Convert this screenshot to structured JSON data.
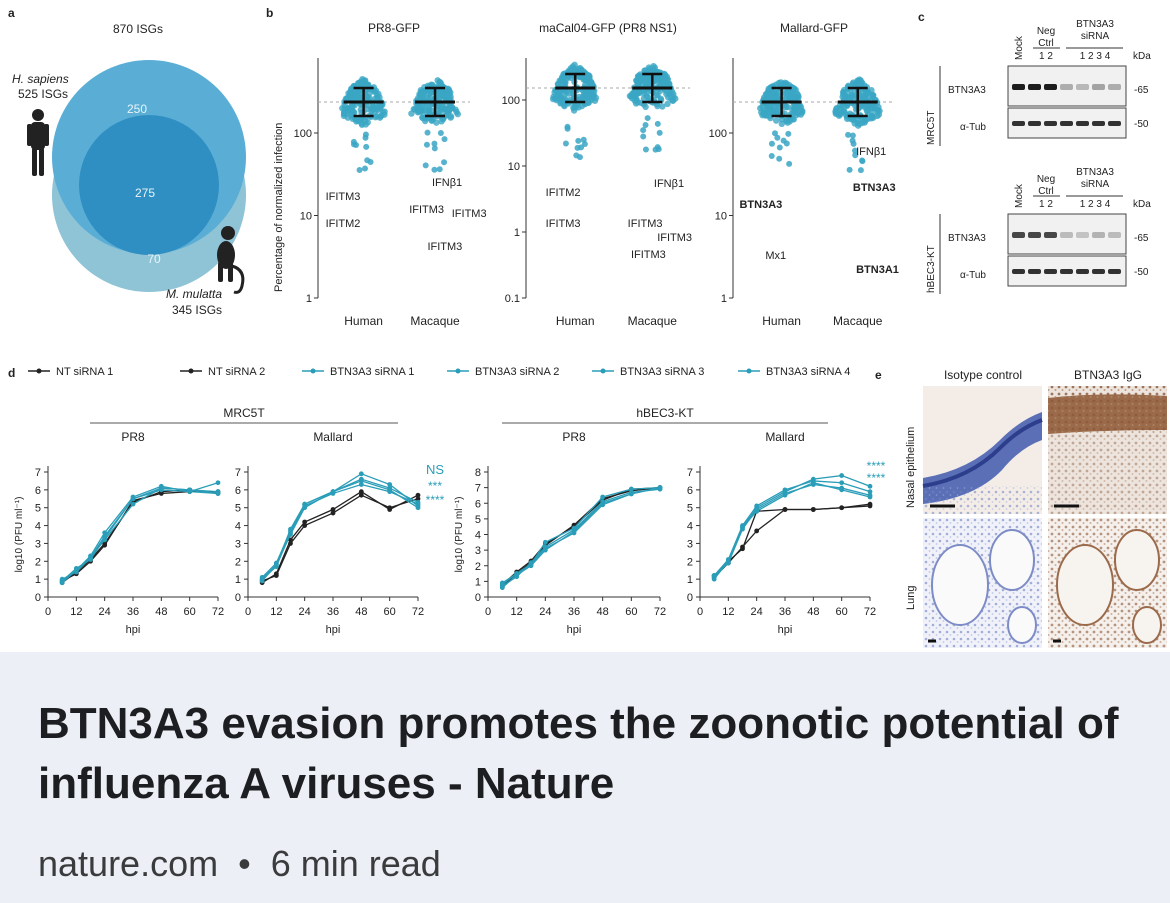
{
  "link_preview": {
    "title": "BTN3A3 evasion promotes the zoonotic potential of influenza A viruses - Nature",
    "site": "nature.com",
    "separator": "•",
    "read_time": "6 min read"
  },
  "figure": {
    "panel_a": {
      "letter": "a",
      "title": "870 ISGs",
      "human_species": "H. sapiens",
      "human_count": "525 ISGs",
      "macaque_species": "M. mulatta",
      "macaque_count": "345 ISGs",
      "human_only": "250",
      "shared": "275",
      "macaque_only": "70",
      "colors": {
        "human": "#5aaed6",
        "shared": "#2f8fc2",
        "macaque": "#8fc3d6"
      }
    },
    "panel_b": {
      "letter": "b",
      "ylabel": "Percentage of normalized infection",
      "plots": [
        {
          "title": "PR8-GFP",
          "xlabels": [
            "Human",
            "Macaque"
          ],
          "yticks": [
            "1",
            "10",
            "100"
          ],
          "labels": [
            {
              "text": "IFITM3",
              "x": 0.05,
              "y": 200,
              "bold": false
            },
            {
              "text": "IFITM2",
              "x": 0.05,
              "y": 227,
              "bold": false
            },
            {
              "text": "IFNβ1",
              "x": 0.75,
              "y": 186,
              "bold": false
            },
            {
              "text": "IFITM3",
              "x": 0.6,
              "y": 213,
              "bold": false
            },
            {
              "text": "IFITM3",
              "x": 0.88,
              "y": 217,
              "bold": false
            },
            {
              "text": "IFITM3",
              "x": 0.72,
              "y": 250,
              "bold": false
            }
          ]
        },
        {
          "title": "maCal04-GFP (PR8 NS1)",
          "xlabels": [
            "Human",
            "Macaque"
          ],
          "yticks": [
            "0.1",
            "1",
            "10",
            "100"
          ],
          "labels": [
            {
              "text": "IFITM2",
              "x": 0.12,
              "y": 196,
              "bold": false
            },
            {
              "text": "IFITM3",
              "x": 0.12,
              "y": 227,
              "bold": false
            },
            {
              "text": "IFNβ1",
              "x": 0.78,
              "y": 187,
              "bold": false
            },
            {
              "text": "IFITM3",
              "x": 0.62,
              "y": 227,
              "bold": false
            },
            {
              "text": "IFITM3",
              "x": 0.8,
              "y": 241,
              "bold": false
            },
            {
              "text": "IFITM3",
              "x": 0.64,
              "y": 258,
              "bold": false
            }
          ]
        },
        {
          "title": "Mallard-GFP",
          "xlabels": [
            "Human",
            "Macaque"
          ],
          "yticks": [
            "1",
            "10",
            "100"
          ],
          "labels": [
            {
              "text": "BTN3A3",
              "x": 0.04,
              "y": 208,
              "bold": true
            },
            {
              "text": "Mx1",
              "x": 0.2,
              "y": 259,
              "bold": false
            },
            {
              "text": "IFNβ1",
              "x": 0.76,
              "y": 155,
              "bold": false
            },
            {
              "text": "BTN3A3",
              "x": 0.74,
              "y": 191,
              "bold": true
            },
            {
              "text": "BTN3A1",
              "x": 0.76,
              "y": 273,
              "bold": true
            }
          ]
        }
      ],
      "dot_color": "#3aa6c4"
    },
    "panel_c": {
      "letter": "c",
      "blots": [
        {
          "cell_line": "MRC5T",
          "mock": "Mock",
          "neg": "Neg",
          "ctrl": "Ctrl",
          "neg_lanes": "1  2",
          "sirna_title": "BTN3A3",
          "sirna_sub": "siRNA",
          "sirna_lanes": "1  2  3  4",
          "kda": "kDa",
          "band1": "BTN3A3",
          "band2": "α-Tub",
          "mw1": "65",
          "mw2": "50"
        },
        {
          "cell_line": "hBEC3-KT",
          "mock": "Mock",
          "neg": "Neg",
          "ctrl": "Ctrl",
          "neg_lanes": "1  2",
          "sirna_title": "BTN3A3",
          "sirna_sub": "siRNA",
          "sirna_lanes": "1  2  3  4",
          "kda": "kDa",
          "band1": "BTN3A3",
          "band2": "α-Tub",
          "mw1": "65",
          "mw2": "50"
        }
      ]
    },
    "panel_d": {
      "letter": "d",
      "legend": [
        {
          "name": "NT siRNA 1",
          "color": "#222222"
        },
        {
          "name": "NT siRNA 2",
          "color": "#222222"
        },
        {
          "name": "BTN3A3 siRNA 1",
          "color": "#2a9db8"
        },
        {
          "name": "BTN3A3 siRNA 2",
          "color": "#2a9db8"
        },
        {
          "name": "BTN3A3 siRNA 3",
          "color": "#2a9db8"
        },
        {
          "name": "BTN3A3 siRNA 4",
          "color": "#2a9db8"
        }
      ],
      "groups": [
        "MRC5T",
        "hBEC3-KT"
      ],
      "xlabel": "hpi",
      "ylabel": "log10 (PFU ml⁻¹)",
      "x_ticks": [
        0,
        12,
        24,
        36,
        48,
        60,
        72
      ],
      "sig_labels": [
        "NS",
        "***",
        "****",
        "****"
      ]
    },
    "panel_e": {
      "letter": "e",
      "col1": "Isotype control",
      "col2": "BTN3A3 IgG",
      "row1": "Nasal epithelium",
      "row2": "Lung"
    }
  },
  "chart_data": [
    {
      "type": "line",
      "title": "PR8",
      "group": "MRC5T",
      "xlabel": "hpi",
      "ylabel": "log10 (PFU ml⁻¹)",
      "x": [
        6,
        12,
        18,
        24,
        36,
        48,
        60,
        72
      ],
      "ylim": [
        0,
        7
      ],
      "series": [
        {
          "name": "NT siRNA 1",
          "values": [
            0.9,
            1.3,
            2.0,
            2.9,
            5.4,
            5.8,
            5.9,
            5.9
          ]
        },
        {
          "name": "NT siRNA 2",
          "values": [
            0.8,
            1.4,
            2.1,
            3.0,
            5.3,
            5.9,
            6.0,
            5.8
          ]
        },
        {
          "name": "BTN3A3 siRNA 1",
          "values": [
            0.9,
            1.5,
            2.3,
            3.6,
            5.6,
            6.2,
            5.9,
            6.4
          ]
        },
        {
          "name": "BTN3A3 siRNA 2",
          "values": [
            1.0,
            1.4,
            2.2,
            3.4,
            5.5,
            6.1,
            6.0,
            5.9
          ]
        },
        {
          "name": "BTN3A3 siRNA 3",
          "values": [
            0.9,
            1.6,
            2.1,
            3.3,
            5.5,
            6.0,
            5.9,
            5.8
          ]
        },
        {
          "name": "BTN3A3 siRNA 4",
          "values": [
            0.8,
            1.5,
            2.2,
            3.2,
            5.2,
            6.1,
            6.0,
            5.8
          ]
        }
      ]
    },
    {
      "type": "line",
      "title": "Mallard",
      "group": "MRC5T",
      "xlabel": "hpi",
      "ylabel": "log10 (PFU ml⁻¹)",
      "x": [
        6,
        12,
        18,
        24,
        36,
        48,
        60,
        72
      ],
      "ylim": [
        0,
        7
      ],
      "series": [
        {
          "name": "NT siRNA 1",
          "values": [
            0.9,
            1.2,
            3.0,
            4.0,
            4.7,
            5.7,
            5.0,
            5.5
          ]
        },
        {
          "name": "NT siRNA 2",
          "values": [
            0.8,
            1.3,
            3.2,
            4.2,
            4.9,
            5.9,
            4.9,
            5.7
          ]
        },
        {
          "name": "BTN3A3 siRNA 1",
          "values": [
            1.0,
            1.8,
            3.8,
            5.2,
            5.9,
            6.6,
            6.1,
            5.3
          ]
        },
        {
          "name": "BTN3A3 siRNA 2",
          "values": [
            1.1,
            1.9,
            3.7,
            5.2,
            5.9,
            6.9,
            6.3,
            5.1
          ]
        },
        {
          "name": "BTN3A3 siRNA 3",
          "values": [
            1.0,
            1.7,
            3.6,
            5.1,
            5.8,
            6.3,
            5.9,
            5.2
          ]
        },
        {
          "name": "BTN3A3 siRNA 4",
          "values": [
            0.9,
            1.8,
            3.5,
            5.0,
            5.9,
            6.5,
            6.0,
            5.0
          ]
        }
      ]
    },
    {
      "type": "line",
      "title": "PR8",
      "group": "hBEC3-KT",
      "xlabel": "hpi",
      "ylabel": "log10 (PFU ml⁻¹)",
      "x": [
        6,
        12,
        18,
        24,
        36,
        48,
        60,
        72
      ],
      "ylim": [
        0,
        8
      ],
      "series": [
        {
          "name": "NT siRNA 1",
          "values": [
            0.7,
            1.5,
            2.2,
            3.3,
            4.6,
            6.3,
            6.8,
            7.0
          ]
        },
        {
          "name": "NT siRNA 2",
          "values": [
            0.8,
            1.6,
            2.3,
            3.4,
            4.5,
            6.2,
            6.9,
            7.0
          ]
        },
        {
          "name": "BTN3A3 siRNA 1",
          "values": [
            0.9,
            1.5,
            2.1,
            3.5,
            4.4,
            6.4,
            6.9,
            7.0
          ]
        },
        {
          "name": "BTN3A3 siRNA 2",
          "values": [
            0.6,
            1.4,
            2.0,
            3.0,
            4.2,
            6.0,
            6.6,
            7.0
          ]
        },
        {
          "name": "BTN3A3 siRNA 3",
          "values": [
            0.7,
            1.3,
            2.2,
            3.2,
            4.3,
            6.1,
            6.7,
            6.9
          ]
        },
        {
          "name": "BTN3A3 siRNA 4",
          "values": [
            0.8,
            1.5,
            2.1,
            3.1,
            4.1,
            5.9,
            6.6,
            7.0
          ]
        }
      ]
    },
    {
      "type": "line",
      "title": "Mallard",
      "group": "hBEC3-KT",
      "xlabel": "hpi",
      "ylabel": "log10 (PFU ml⁻¹)",
      "x": [
        6,
        12,
        18,
        24,
        36,
        48,
        60,
        72
      ],
      "ylim": [
        0,
        7
      ],
      "series": [
        {
          "name": "NT siRNA 1",
          "values": [
            1.1,
            1.9,
            2.8,
            3.7,
            4.9,
            4.9,
            5.0,
            5.1
          ]
        },
        {
          "name": "NT siRNA 2",
          "values": [
            1.2,
            2.0,
            2.7,
            4.8,
            4.9,
            4.9,
            5.0,
            5.2
          ]
        },
        {
          "name": "BTN3A3 siRNA 1",
          "values": [
            1.2,
            2.1,
            4.0,
            5.1,
            6.0,
            6.5,
            6.4,
            5.9
          ]
        },
        {
          "name": "BTN3A3 siRNA 2",
          "values": [
            1.1,
            2.0,
            3.9,
            5.0,
            5.9,
            6.6,
            6.8,
            6.2
          ]
        },
        {
          "name": "BTN3A3 siRNA 3",
          "values": [
            1.2,
            1.9,
            3.8,
            4.9,
            5.8,
            6.3,
            6.1,
            5.7
          ]
        },
        {
          "name": "BTN3A3 siRNA 4",
          "values": [
            1.0,
            2.0,
            3.9,
            4.8,
            5.7,
            6.4,
            6.0,
            5.6
          ]
        }
      ]
    }
  ]
}
